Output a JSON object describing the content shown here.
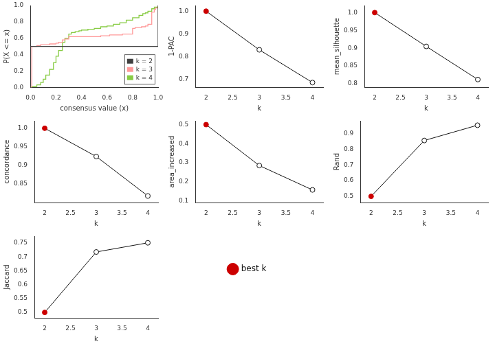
{
  "chart_data": [
    {
      "type": "step",
      "x_label": "consensus value (x)",
      "y_label": "P(X <= x)",
      "xlim": [
        0,
        1
      ],
      "ylim": [
        0,
        1
      ],
      "xticks": [
        {
          "value": 0.0,
          "label": "0.0"
        },
        0.2,
        0.4,
        0.6,
        0.8,
        {
          "value": 1.0,
          "label": "1.0"
        }
      ],
      "yticks": [
        {
          "value": 0.0,
          "label": "0.0"
        },
        0.2,
        0.4,
        0.6,
        0.8,
        {
          "value": 1.0,
          "label": "1.0"
        }
      ],
      "grid": false,
      "legend": "lower right",
      "series": [
        {
          "name": "k = 2",
          "color": "#404040",
          "x": [
            0.0,
            0.0,
            1.0,
            1.0
          ],
          "values": [
            0.0,
            0.5,
            0.5,
            1.0
          ]
        },
        {
          "name": "k = 3",
          "color": "#FF9999",
          "x": [
            0.0,
            0.002,
            0.01,
            0.02,
            0.03,
            0.05,
            0.08,
            0.1,
            0.15,
            0.2,
            0.22,
            0.25,
            0.27,
            0.3,
            0.35,
            0.4,
            0.45,
            0.5,
            0.55,
            0.6,
            0.62,
            0.65,
            0.68,
            0.7,
            0.72,
            0.75,
            0.78,
            0.8,
            0.82,
            0.85,
            0.87,
            0.88,
            0.9,
            0.92,
            0.95,
            0.97,
            0.98,
            1.0
          ],
          "values": [
            0.0,
            0.0,
            0.5,
            0.5,
            0.5,
            0.51,
            0.52,
            0.52,
            0.53,
            0.54,
            0.55,
            0.58,
            0.59,
            0.62,
            0.62,
            0.62,
            0.62,
            0.62,
            0.63,
            0.63,
            0.64,
            0.64,
            0.64,
            0.64,
            0.65,
            0.65,
            0.65,
            0.72,
            0.73,
            0.73,
            0.74,
            0.74,
            0.75,
            0.77,
            0.92,
            0.95,
            0.97,
            1.0
          ]
        },
        {
          "name": "k = 4",
          "color": "#88CC44",
          "x": [
            0.0,
            0.002,
            0.01,
            0.05,
            0.08,
            0.1,
            0.12,
            0.15,
            0.18,
            0.2,
            0.22,
            0.25,
            0.27,
            0.3,
            0.32,
            0.35,
            0.38,
            0.4,
            0.45,
            0.5,
            0.55,
            0.6,
            0.65,
            0.7,
            0.75,
            0.8,
            0.85,
            0.88,
            0.9,
            0.92,
            0.95,
            0.97,
            1.0
          ],
          "values": [
            0.0,
            0.0,
            0.01,
            0.03,
            0.06,
            0.1,
            0.15,
            0.22,
            0.3,
            0.38,
            0.45,
            0.55,
            0.6,
            0.65,
            0.67,
            0.68,
            0.69,
            0.7,
            0.71,
            0.72,
            0.74,
            0.75,
            0.77,
            0.79,
            0.82,
            0.85,
            0.88,
            0.9,
            0.91,
            0.93,
            0.96,
            0.98,
            1.0
          ]
        }
      ]
    },
    {
      "type": "line",
      "x_label": "k",
      "y_label": "1-PAC",
      "x": [
        2,
        3,
        4
      ],
      "values": [
        1.0,
        0.83,
        0.686
      ],
      "color": "#111111",
      "colors": [
        "#CC0000",
        "#111111",
        "#111111"
      ],
      "marker": "circle",
      "xlim": [
        1.8,
        4.2
      ],
      "xticks": [
        2,
        2.5,
        3,
        3.5,
        4
      ],
      "ylim": [
        0.665,
        1.025
      ],
      "yticks": [
        0.7,
        0.8,
        0.9,
        {
          "value": 1.0,
          "label": "1.0"
        }
      ],
      "grid": false
    },
    {
      "type": "line",
      "x_label": "k",
      "y_label": "mean_silhouette",
      "x": [
        2,
        3,
        4
      ],
      "values": [
        1.0,
        0.905,
        0.812
      ],
      "color": "#111111",
      "colors": [
        "#CC0000",
        "#111111",
        "#111111"
      ],
      "marker": "circle",
      "xlim": [
        1.8,
        4.2
      ],
      "xticks": [
        2,
        2.5,
        3,
        3.5,
        4
      ],
      "ylim": [
        0.79,
        1.02
      ],
      "yticks": [
        0.8,
        0.85,
        0.9,
        0.95,
        {
          "value": 1.0,
          "label": "1.0"
        }
      ],
      "grid": false
    },
    {
      "type": "line",
      "x_label": "k",
      "y_label": "concordance",
      "x": [
        2,
        3,
        4
      ],
      "values": [
        1.0,
        0.924,
        0.818
      ],
      "color": "#111111",
      "colors": [
        "#CC0000",
        "#111111",
        "#111111"
      ],
      "marker": "circle",
      "xlim": [
        1.8,
        4.2
      ],
      "xticks": [
        2,
        2.5,
        3,
        3.5,
        4
      ],
      "ylim": [
        0.8,
        1.02
      ],
      "yticks": [
        0.85,
        0.9,
        0.95,
        {
          "value": 1.0,
          "label": "1.0"
        }
      ],
      "grid": false
    },
    {
      "type": "line",
      "x_label": "k",
      "y_label": "area_increased",
      "x": [
        2,
        3,
        4
      ],
      "values": [
        0.5,
        0.285,
        0.157
      ],
      "color": "#111111",
      "colors": [
        "#CC0000",
        "#111111",
        "#111111"
      ],
      "marker": "circle",
      "xlim": [
        1.8,
        4.2
      ],
      "xticks": [
        2,
        2.5,
        3,
        3.5,
        4
      ],
      "ylim": [
        0.09,
        0.52
      ],
      "yticks": [
        0.1,
        0.2,
        0.3,
        0.4,
        0.5
      ],
      "grid": false
    },
    {
      "type": "line",
      "x_label": "k",
      "y_label": "Rand",
      "x": [
        2,
        3,
        4
      ],
      "values": [
        0.5,
        0.855,
        0.952
      ],
      "color": "#111111",
      "colors": [
        "#CC0000",
        "#111111",
        "#111111"
      ],
      "marker": "circle",
      "xlim": [
        1.8,
        4.2
      ],
      "xticks": [
        2,
        2.5,
        3,
        3.5,
        4
      ],
      "ylim": [
        0.46,
        0.98
      ],
      "yticks": [
        0.5,
        0.6,
        0.7,
        0.8,
        0.9
      ],
      "grid": false
    },
    {
      "type": "line",
      "x_label": "k",
      "y_label": "Jaccard",
      "x": [
        2,
        3,
        4
      ],
      "values": [
        0.5,
        0.718,
        0.751
      ],
      "color": "#111111",
      "colors": [
        "#CC0000",
        "#111111",
        "#111111"
      ],
      "marker": "circle",
      "xlim": [
        1.8,
        4.2
      ],
      "xticks": [
        2,
        2.5,
        3,
        3.5,
        4
      ],
      "ylim": [
        0.48,
        0.775
      ],
      "yticks": [
        0.5,
        0.55,
        0.6,
        0.65,
        0.7,
        0.75
      ],
      "grid": false
    },
    {
      "type": "legend",
      "series": [
        {
          "name": "best k",
          "color": "#CC0000",
          "marker": "circle"
        }
      ]
    }
  ]
}
